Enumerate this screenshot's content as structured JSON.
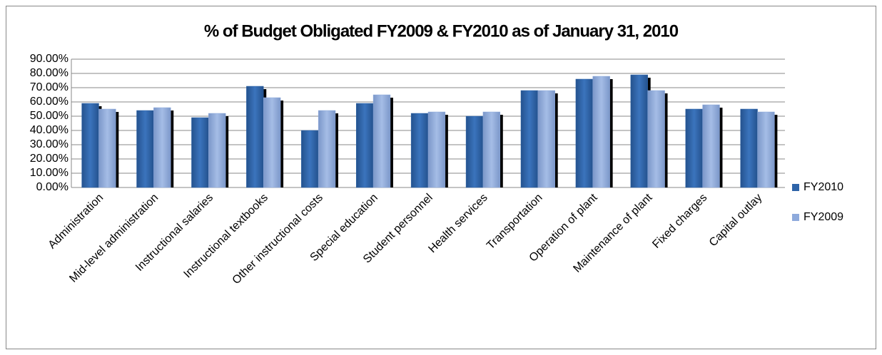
{
  "chart_data": {
    "type": "bar",
    "title": "% of Budget Obligated FY2009 & FY2010 as of January 31, 2010",
    "categories": [
      "Administration",
      "Mid-level administration",
      "Instructional salaries",
      "Instructional textbooks",
      "Other instructional costs",
      "Special education",
      "Student personnel",
      "Health services",
      "Transportation",
      "Operation of plant",
      "Maintenance of plant",
      "Fixed charges",
      "Capital outlay"
    ],
    "series": [
      {
        "name": "FY2010",
        "color": "#2e64a8",
        "values": [
          59,
          54,
          49,
          71,
          40,
          59,
          52,
          50,
          68,
          76,
          79,
          55,
          55
        ]
      },
      {
        "name": "FY2009",
        "color": "#8eaadc",
        "values": [
          55,
          56,
          52,
          63,
          54,
          65,
          53,
          53,
          68,
          78,
          68,
          58,
          53
        ]
      }
    ],
    "ylim": [
      0,
      90
    ],
    "yticks": [
      {
        "value": 0,
        "label": "0.00%"
      },
      {
        "value": 10,
        "label": "10.00%"
      },
      {
        "value": 20,
        "label": "20.00%"
      },
      {
        "value": 30,
        "label": "30.00%"
      },
      {
        "value": 40,
        "label": "40.00%"
      },
      {
        "value": 50,
        "label": "50.00%"
      },
      {
        "value": 60,
        "label": "60.00%"
      },
      {
        "value": 70,
        "label": "70.00%"
      },
      {
        "value": 80,
        "label": "80.00%"
      },
      {
        "value": 90,
        "label": "90.00%"
      }
    ],
    "grid": true,
    "legend": "right"
  }
}
